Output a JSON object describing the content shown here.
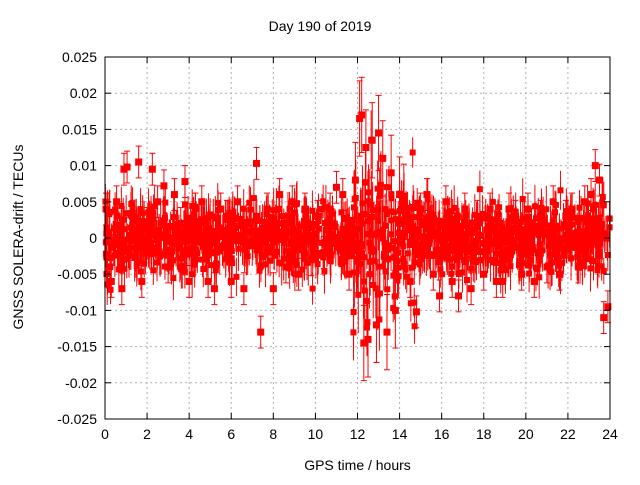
{
  "chart_data": {
    "type": "scatter",
    "title": "Day 190 of 2019",
    "xlabel": "GPS time / hours",
    "ylabel": "GNSS SOLERA-drift / TECUs",
    "xlim": [
      0,
      24
    ],
    "ylim": [
      -0.025,
      0.025
    ],
    "xticks": [
      0,
      2,
      4,
      6,
      8,
      10,
      12,
      14,
      16,
      18,
      20,
      22,
      24
    ],
    "yticks": [
      0.025,
      0.02,
      0.015,
      0.01,
      0.005,
      0,
      -0.005,
      -0.01,
      -0.015,
      -0.02,
      -0.025
    ],
    "ytick_labels": [
      "0.025",
      "0.02",
      "0.015",
      "0.01",
      "0.005",
      "0",
      "-0.005",
      "-0.01",
      "-0.015",
      "-0.02",
      "-0.025"
    ],
    "grid": true,
    "marker": "filled-square",
    "error_bars": true,
    "color": "#ff0000",
    "series": [
      {
        "x": [
          0.05,
          0.3,
          0.55,
          0.8,
          0.9,
          1.05,
          1.3,
          1.6,
          1.75,
          2.0,
          2.25,
          2.5,
          2.8,
          3.0,
          3.3,
          3.6,
          3.8,
          4.0,
          4.3,
          4.6,
          4.9,
          5.2,
          5.5,
          5.8,
          6.0,
          6.3,
          6.6,
          6.9,
          7.2,
          7.4,
          7.7,
          8.0,
          8.3,
          8.6,
          8.9,
          9.2,
          9.5,
          9.8,
          10.1,
          10.4,
          10.7,
          11.0,
          11.3,
          11.6,
          11.9,
          12.1,
          12.2,
          12.3,
          12.4,
          12.5,
          12.7,
          12.9,
          13.0,
          13.2,
          13.4,
          13.6,
          13.8,
          14.0,
          14.2,
          14.5,
          14.8,
          15.0,
          15.3,
          15.6,
          15.9,
          16.2,
          16.5,
          16.8,
          17.1,
          17.4,
          17.7,
          18.0,
          18.3,
          18.6,
          18.9,
          19.2,
          19.5,
          19.8,
          20.1,
          20.4,
          20.7,
          21.0,
          21.3,
          21.6,
          21.9,
          22.2,
          22.5,
          22.8,
          23.1,
          23.3,
          23.5,
          23.7,
          23.9
        ],
        "y": [
          0.004,
          -0.006,
          0.005,
          -0.007,
          0.0095,
          0.0098,
          0.003,
          0.0105,
          -0.006,
          0.002,
          0.0095,
          0.005,
          0.0072,
          -0.004,
          0.006,
          0.002,
          0.0078,
          -0.006,
          0.004,
          0.005,
          -0.006,
          -0.007,
          0.004,
          0.003,
          -0.006,
          0.005,
          -0.007,
          0.002,
          0.0103,
          -0.013,
          0.004,
          -0.007,
          0.006,
          -0.004,
          0.005,
          -0.005,
          0.004,
          -0.003,
          0.003,
          -0.002,
          0.004,
          0.007,
          0.006,
          -0.005,
          0.008,
          0.0165,
          0.017,
          -0.0145,
          0.0125,
          -0.014,
          0.0135,
          -0.012,
          0.0145,
          0.011,
          -0.013,
          0.009,
          -0.01,
          0.006,
          0.005,
          -0.006,
          -0.0102,
          0.004,
          0.006,
          -0.005,
          -0.008,
          0.005,
          -0.006,
          -0.008,
          0.004,
          -0.007,
          0.003,
          -0.005,
          0.004,
          -0.006,
          -0.006,
          0.004,
          0.003,
          -0.005,
          0.004,
          -0.006,
          0.003,
          -0.004,
          0.005,
          -0.005,
          0.003,
          0.004,
          -0.004,
          0.005,
          0.006,
          0.01,
          0.008,
          -0.011,
          -0.0095
        ]
      }
    ]
  }
}
